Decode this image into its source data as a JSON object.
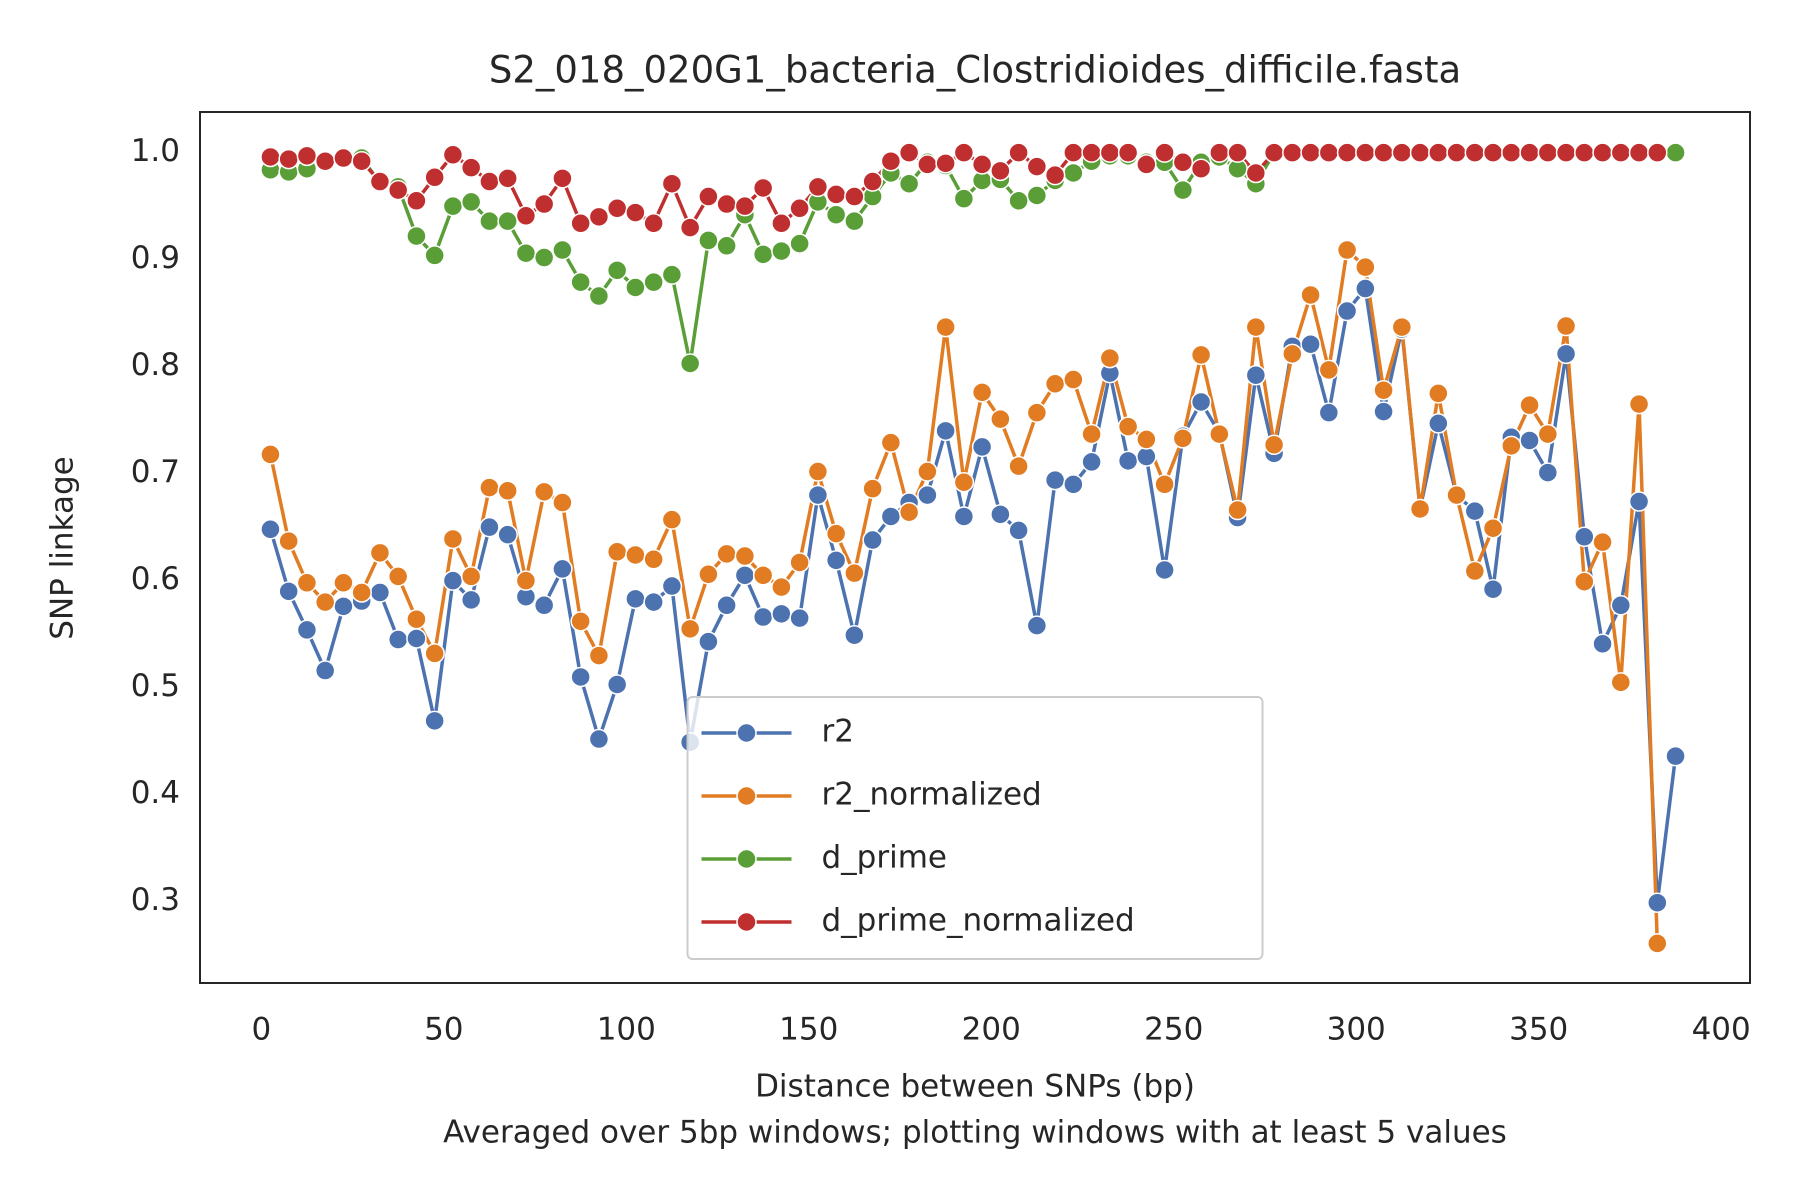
{
  "chart_data": {
    "type": "line",
    "title": "S2_018_020G1_bacteria_Clostridioides_difficile.fasta",
    "x_label": "Distance between SNPs (bp)",
    "subtitle": "Averaged over 5bp windows; plotting windows with at least 5 values",
    "y_label": "SNP linkage",
    "x": [
      2.5,
      7.5,
      12.5,
      17.5,
      22.5,
      27.5,
      32.5,
      37.5,
      42.5,
      47.5,
      52.5,
      57.5,
      62.5,
      67.5,
      72.5,
      77.5,
      82.5,
      87.5,
      92.5,
      97.5,
      102.5,
      107.5,
      112.5,
      117.5,
      122.5,
      127.5,
      132.5,
      137.5,
      142.5,
      147.5,
      152.5,
      157.5,
      162.5,
      167.5,
      172.5,
      177.5,
      182.5,
      187.5,
      192.5,
      197.5,
      202.5,
      207.5,
      212.5,
      217.5,
      222.5,
      227.5,
      232.5,
      237.5,
      242.5,
      247.5,
      252.5,
      257.5,
      262.5,
      267.5,
      272.5,
      277.5,
      282.5,
      287.5,
      292.5,
      297.5,
      302.5,
      307.5,
      312.5,
      317.5,
      322.5,
      327.5,
      332.5,
      337.5,
      342.5,
      347.5,
      352.5,
      357.5,
      362.5,
      367.5,
      372.5,
      377.5,
      382.5,
      387.5
    ],
    "series": [
      {
        "name": "r2",
        "color": "#4c72b0",
        "values": [
          0.648,
          0.59,
          0.554,
          0.516,
          0.576,
          0.581,
          0.589,
          0.545,
          0.546,
          0.469,
          0.6,
          0.582,
          0.65,
          0.643,
          0.585,
          0.577,
          0.611,
          0.51,
          0.452,
          0.503,
          0.583,
          0.58,
          0.595,
          0.449,
          0.543,
          0.577,
          0.605,
          0.566,
          0.569,
          0.565,
          0.68,
          0.619,
          0.549,
          0.638,
          0.66,
          0.673,
          0.68,
          0.74,
          0.66,
          0.725,
          0.662,
          0.647,
          0.558,
          0.694,
          0.69,
          0.711,
          0.794,
          0.712,
          0.716,
          0.61,
          0.735,
          0.767,
          0.738,
          0.659,
          0.792,
          0.719,
          0.819,
          0.821,
          0.757,
          0.852,
          0.873,
          0.758,
          0.835,
          0.667,
          0.747,
          0.68,
          0.665,
          0.592,
          0.734,
          0.731,
          0.701,
          0.812,
          0.641,
          0.541,
          0.577,
          0.674,
          0.299,
          0.436
        ]
      },
      {
        "name": "r2_normalized",
        "color": "#e17c23",
        "values": [
          0.718,
          0.637,
          0.598,
          0.58,
          0.598,
          0.589,
          0.626,
          0.604,
          0.564,
          0.532,
          0.639,
          0.604,
          0.687,
          0.684,
          0.6,
          0.683,
          0.673,
          0.562,
          0.53,
          0.627,
          0.624,
          0.62,
          0.657,
          0.555,
          0.606,
          0.625,
          0.623,
          0.605,
          0.594,
          0.617,
          0.702,
          0.644,
          0.607,
          0.686,
          0.729,
          0.664,
          0.702,
          0.837,
          0.692,
          0.776,
          0.751,
          0.707,
          0.757,
          0.784,
          0.788,
          0.737,
          0.808,
          0.744,
          0.732,
          0.69,
          0.733,
          0.811,
          0.737,
          0.666,
          0.837,
          0.727,
          0.812,
          0.867,
          0.797,
          0.909,
          0.893,
          0.778,
          0.837,
          0.667,
          0.775,
          0.68,
          0.609,
          0.649,
          0.726,
          0.764,
          0.737,
          0.838,
          0.599,
          0.636,
          0.505,
          0.765,
          0.261,
          null
        ]
      },
      {
        "name": "d_prime",
        "color": "#5a9e37",
        "values": [
          0.984,
          0.982,
          0.985,
          0.991,
          0.995,
          0.995,
          0.972,
          0.968,
          0.922,
          0.904,
          0.95,
          0.954,
          0.936,
          0.936,
          0.906,
          0.902,
          0.909,
          0.879,
          0.866,
          0.89,
          0.874,
          0.879,
          0.886,
          0.803,
          0.918,
          0.913,
          0.942,
          0.905,
          0.908,
          0.915,
          0.954,
          0.942,
          0.936,
          0.959,
          0.981,
          0.971,
          0.991,
          0.988,
          0.957,
          0.974,
          0.975,
          0.955,
          0.96,
          0.974,
          0.981,
          0.992,
          0.997,
          0.997,
          0.991,
          0.991,
          0.965,
          0.991,
          0.996,
          0.985,
          0.971,
          1,
          1,
          1,
          1,
          1,
          1,
          1,
          1,
          1,
          1,
          1,
          1,
          1,
          1,
          1,
          1,
          1,
          1,
          1,
          1,
          1,
          1,
          1
        ]
      },
      {
        "name": "d_prime_normalized",
        "color": "#c02f2f",
        "values": [
          0.996,
          0.994,
          0.997,
          0.992,
          0.995,
          0.992,
          0.973,
          0.965,
          0.955,
          0.977,
          0.998,
          0.986,
          0.973,
          0.976,
          0.941,
          0.952,
          0.976,
          0.934,
          0.94,
          0.948,
          0.944,
          0.934,
          0.971,
          0.93,
          0.959,
          0.952,
          0.95,
          0.967,
          0.934,
          0.948,
          0.968,
          0.961,
          0.959,
          0.973,
          0.992,
          1,
          0.989,
          0.99,
          1,
          0.989,
          0.983,
          1,
          0.987,
          0.979,
          1,
          1,
          1,
          1,
          0.989,
          1,
          0.991,
          0.985,
          1,
          1,
          0.981,
          1,
          1,
          1,
          1,
          1,
          1,
          1,
          1,
          1,
          1,
          1,
          1,
          1,
          1,
          1,
          1,
          1,
          1,
          1,
          1,
          1,
          1,
          null
        ]
      }
    ],
    "xlim": [
      -16.8,
      407.9
    ],
    "ylim": [
      0.224,
      1.038
    ],
    "xticks": [
      0,
      50,
      100,
      150,
      200,
      250,
      300,
      350,
      400
    ],
    "yticks": [
      0.3,
      0.4,
      0.5,
      0.6,
      0.7,
      0.8,
      0.9,
      {
        "value": 1,
        "label": "1.0"
      }
    ],
    "grid": false,
    "legend_loc": "lower center"
  }
}
